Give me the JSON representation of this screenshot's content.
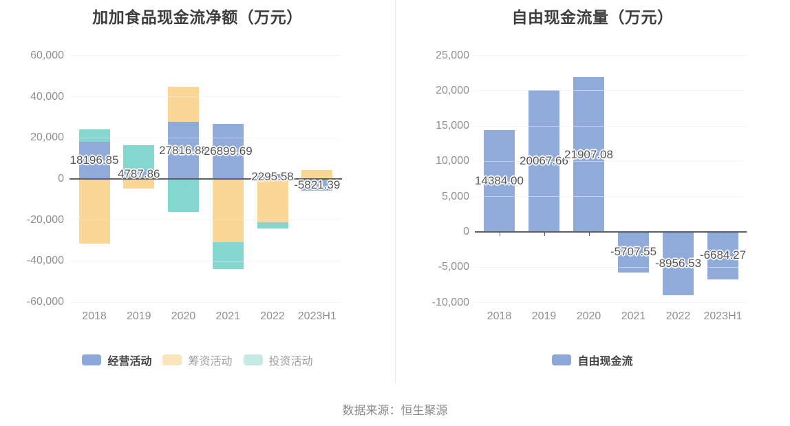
{
  "source_note": "数据来源：恒生聚源",
  "chart_data": [
    {
      "type": "bar",
      "stacked": true,
      "title": "加加食品现金流净额（万元）",
      "categories": [
        "2018",
        "2019",
        "2020",
        "2021",
        "2022",
        "2023H1"
      ],
      "series": [
        {
          "name": "经营活动",
          "color": "#8CA8D8",
          "values": [
            18196.85,
            4787.86,
            27816.88,
            26899.69,
            2295.58,
            -5821.39
          ],
          "labels": [
            "18196.85",
            "4787.86",
            "27816.88",
            "26899.69",
            "2295.58",
            "-5821.39"
          ]
        },
        {
          "name": "筹资活动",
          "color": "#FBD694",
          "values": [
            -31600,
            -4800,
            17000,
            -30800,
            -21200,
            4400
          ]
        },
        {
          "name": "投资活动",
          "color": "#7FD6CC",
          "values": [
            5900,
            11600,
            -16000,
            -13000,
            -2900,
            0
          ]
        }
      ],
      "ylim": [
        -60000,
        60000
      ],
      "ytick_step": 20000,
      "yticks": [
        {
          "v": 60000,
          "label": "60,000"
        },
        {
          "v": 40000,
          "label": "40,000"
        },
        {
          "v": 20000,
          "label": "20,000"
        },
        {
          "v": 0,
          "label": "0"
        },
        {
          "v": -20000,
          "label": "-20,000"
        },
        {
          "v": -40000,
          "label": "-40,000"
        },
        {
          "v": -60000,
          "label": "-60,000"
        }
      ],
      "grid": true,
      "legend_position": "bottom",
      "legend": [
        {
          "label": "经营活动",
          "swatch": "#8CA8D8",
          "muted": false
        },
        {
          "label": "筹资活动",
          "swatch": "#FBE5BE",
          "muted": true
        },
        {
          "label": "投资活动",
          "swatch": "#C6EAE5",
          "muted": true
        }
      ]
    },
    {
      "type": "bar",
      "stacked": false,
      "title": "自由现金流量（万元）",
      "categories": [
        "2018",
        "2019",
        "2020",
        "2021",
        "2022",
        "2023H1"
      ],
      "series": [
        {
          "name": "自由现金流",
          "color": "#8CA8D8",
          "values": [
            14384.0,
            20067.66,
            21907.08,
            -5707.55,
            -8956.53,
            -6684.27
          ],
          "labels": [
            "14384.00",
            "20067.66",
            "21907.08",
            "-5707.55",
            "-8956.53",
            "-6684.27"
          ]
        }
      ],
      "ylim": [
        -10000,
        25000
      ],
      "ytick_step": 5000,
      "yticks": [
        {
          "v": 25000,
          "label": "25,000"
        },
        {
          "v": 20000,
          "label": "20,000"
        },
        {
          "v": 15000,
          "label": "15,000"
        },
        {
          "v": 10000,
          "label": "10,000"
        },
        {
          "v": 5000,
          "label": "5,000"
        },
        {
          "v": 0,
          "label": "0"
        },
        {
          "v": -5000,
          "label": "-5,000"
        },
        {
          "v": -10000,
          "label": "-10,000"
        }
      ],
      "grid": true,
      "legend_position": "bottom",
      "legend": [
        {
          "label": "自由现金流",
          "swatch": "#8CA8D8",
          "muted": false
        }
      ]
    }
  ],
  "colors": {
    "operating": "#8CA8D8",
    "financing": "#FBD694",
    "investing": "#7FD6CC",
    "grid": "#E7EDF7",
    "axis": "#5B5F66",
    "tick_text": "#909090",
    "title_text": "#3E3E3E",
    "value_label_text": "#555555"
  }
}
